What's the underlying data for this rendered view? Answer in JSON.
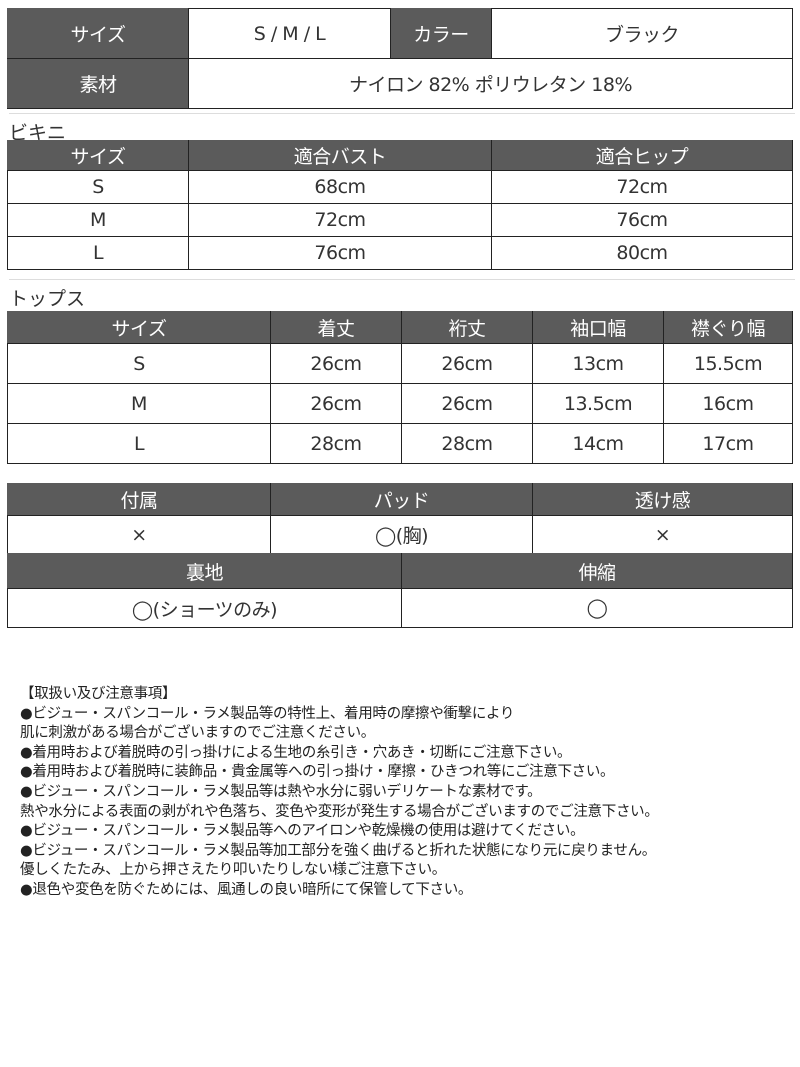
{
  "spec": {
    "size_label": "サイズ",
    "size_value": "S / M / L",
    "color_label": "カラー",
    "color_value": "ブラック",
    "material_label": "素材",
    "material_value": "ナイロン 82% ポリウレタン 18%"
  },
  "bikini": {
    "title": "ビキニ",
    "headers": [
      "サイズ",
      "適合バスト",
      "適合ヒップ"
    ],
    "rows": [
      [
        "S",
        "68cm",
        "72cm"
      ],
      [
        "M",
        "72cm",
        "76cm"
      ],
      [
        "L",
        "76cm",
        "80cm"
      ]
    ]
  },
  "tops": {
    "title": "トップス",
    "headers": [
      "サイズ",
      "着丈",
      "裄丈",
      "袖口幅",
      "襟ぐり幅"
    ],
    "rows": [
      [
        "S",
        "26cm",
        "26cm",
        "13cm",
        "15.5cm"
      ],
      [
        "M",
        "26cm",
        "26cm",
        "13.5cm",
        "16cm"
      ],
      [
        "L",
        "28cm",
        "28cm",
        "14cm",
        "17cm"
      ]
    ]
  },
  "features": {
    "headers1": [
      "付属",
      "パッド",
      "透け感"
    ],
    "values1": [
      "×",
      "◯(胸)",
      "×"
    ],
    "headers2": [
      "裏地",
      "伸縮"
    ],
    "values2": [
      "◯(ショーツのみ)",
      "◯"
    ]
  },
  "notes": [
    "【取扱い及び注意事項】",
    "●ビジュー・スパンコール・ラメ製品等の特性上、着用時の摩擦や衝撃により",
    "肌に刺激がある場合がございますのでご注意ください。",
    "●着用時および着脱時の引っ掛けによる生地の糸引き・穴あき・切断にご注意下さい。",
    "●着用時および着脱時に装飾品・貴金属等への引っ掛け・摩擦・ひきつれ等にご注意下さい。",
    "●ビジュー・スパンコール・ラメ製品等は熱や水分に弱いデリケートな素材です。",
    "熱や水分による表面の剥がれや色落ち、変色や変形が発生する場合がございますのでご注意下さい。",
    "●ビジュー・スパンコール・ラメ製品等へのアイロンや乾燥機の使用は避けてください。",
    "●ビジュー・スパンコール・ラメ製品等加工部分を強く曲げると折れた状態になり元に戻りません。",
    "優しくたたみ、上から押さえたり叩いたりしない様ご注意下さい。",
    "●退色や変色を防ぐためには、風通しの良い暗所にて保管して下さい。"
  ],
  "colors": {
    "header_bg": "#5b5b5b"
  }
}
